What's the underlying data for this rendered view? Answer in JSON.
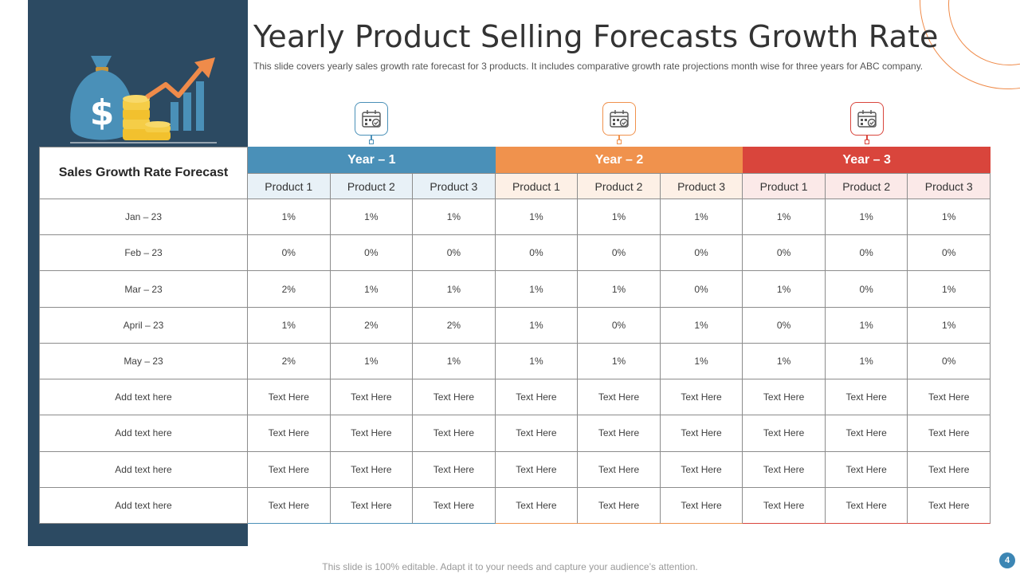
{
  "slide": {
    "title": "Yearly Product Selling Forecasts Growth Rate",
    "subtitle": "This slide covers yearly sales growth rate forecast for 3 products. It includes comparative growth rate projections month wise for three years for ABC company.",
    "footer": "This slide is 100% editable. Adapt it to your needs and capture your audience’s attention.",
    "page_number": "4"
  },
  "colors": {
    "panel": "#2c4a62",
    "year1": "#4a90b8",
    "year2": "#f0924d",
    "year3": "#d9453c"
  },
  "icons": {
    "hero": "money-bag-growth-icon",
    "year": "calendar-check-icon"
  },
  "table": {
    "corner_label": "Sales Growth Rate Forecast",
    "years": [
      "Year – 1",
      "Year – 2",
      "Year – 3"
    ],
    "products": [
      "Product 1",
      "Product 2",
      "Product 3"
    ],
    "rows": [
      {
        "label": "Jan – 23",
        "values": [
          "1%",
          "1%",
          "1%",
          "1%",
          "1%",
          "1%",
          "1%",
          "1%",
          "1%"
        ]
      },
      {
        "label": "Feb – 23",
        "values": [
          "0%",
          "0%",
          "0%",
          "0%",
          "0%",
          "0%",
          "0%",
          "0%",
          "0%"
        ]
      },
      {
        "label": "Mar – 23",
        "values": [
          "2%",
          "1%",
          "1%",
          "1%",
          "1%",
          "0%",
          "1%",
          "0%",
          "1%"
        ]
      },
      {
        "label": "April – 23",
        "values": [
          "1%",
          "2%",
          "2%",
          "1%",
          "0%",
          "1%",
          "0%",
          "1%",
          "1%"
        ]
      },
      {
        "label": "May – 23",
        "values": [
          "2%",
          "1%",
          "1%",
          "1%",
          "1%",
          "1%",
          "1%",
          "1%",
          "0%"
        ]
      },
      {
        "label": "Add text here",
        "values": [
          "Text Here",
          "Text Here",
          "Text Here",
          "Text Here",
          "Text Here",
          "Text Here",
          "Text Here",
          "Text Here",
          "Text Here"
        ]
      },
      {
        "label": "Add text here",
        "values": [
          "Text Here",
          "Text Here",
          "Text Here",
          "Text Here",
          "Text Here",
          "Text Here",
          "Text Here",
          "Text Here",
          "Text Here"
        ]
      },
      {
        "label": "Add text here",
        "values": [
          "Text Here",
          "Text Here",
          "Text Here",
          "Text Here",
          "Text Here",
          "Text Here",
          "Text Here",
          "Text Here",
          "Text Here"
        ]
      },
      {
        "label": "Add text here",
        "values": [
          "Text Here",
          "Text Here",
          "Text Here",
          "Text Here",
          "Text Here",
          "Text Here",
          "Text Here",
          "Text Here",
          "Text Here"
        ]
      }
    ]
  }
}
